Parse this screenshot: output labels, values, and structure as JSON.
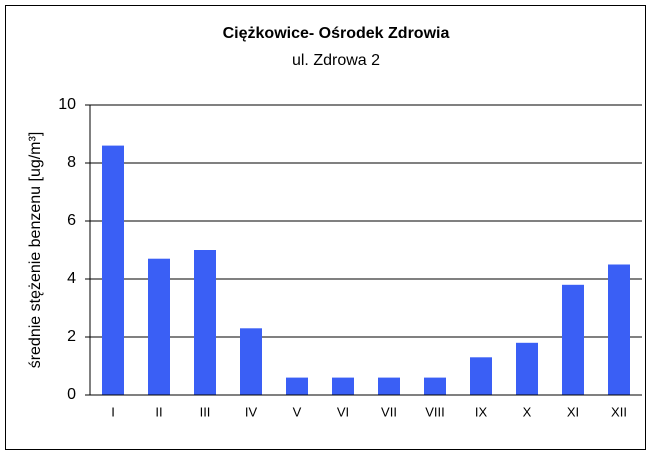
{
  "chart_data": {
    "type": "bar",
    "title": "Ciężkowice- Ośrodek Zdrowia",
    "subtitle": "ul. Zdrowa 2",
    "y_label": "średnie stężenie benzenu  [ug/m³]",
    "categories": [
      "I",
      "II",
      "III",
      "IV",
      "V",
      "VI",
      "VII",
      "VIII",
      "IX",
      "X",
      "XI",
      "XII"
    ],
    "values": [
      8.6,
      4.7,
      5.0,
      2.3,
      0.6,
      0.6,
      0.6,
      0.6,
      1.3,
      1.8,
      3.8,
      4.5
    ],
    "color": "#3a5ff5",
    "ylim": [
      0,
      10
    ],
    "yticks": [
      0,
      2,
      4,
      6,
      8,
      10
    ],
    "grid": true
  }
}
